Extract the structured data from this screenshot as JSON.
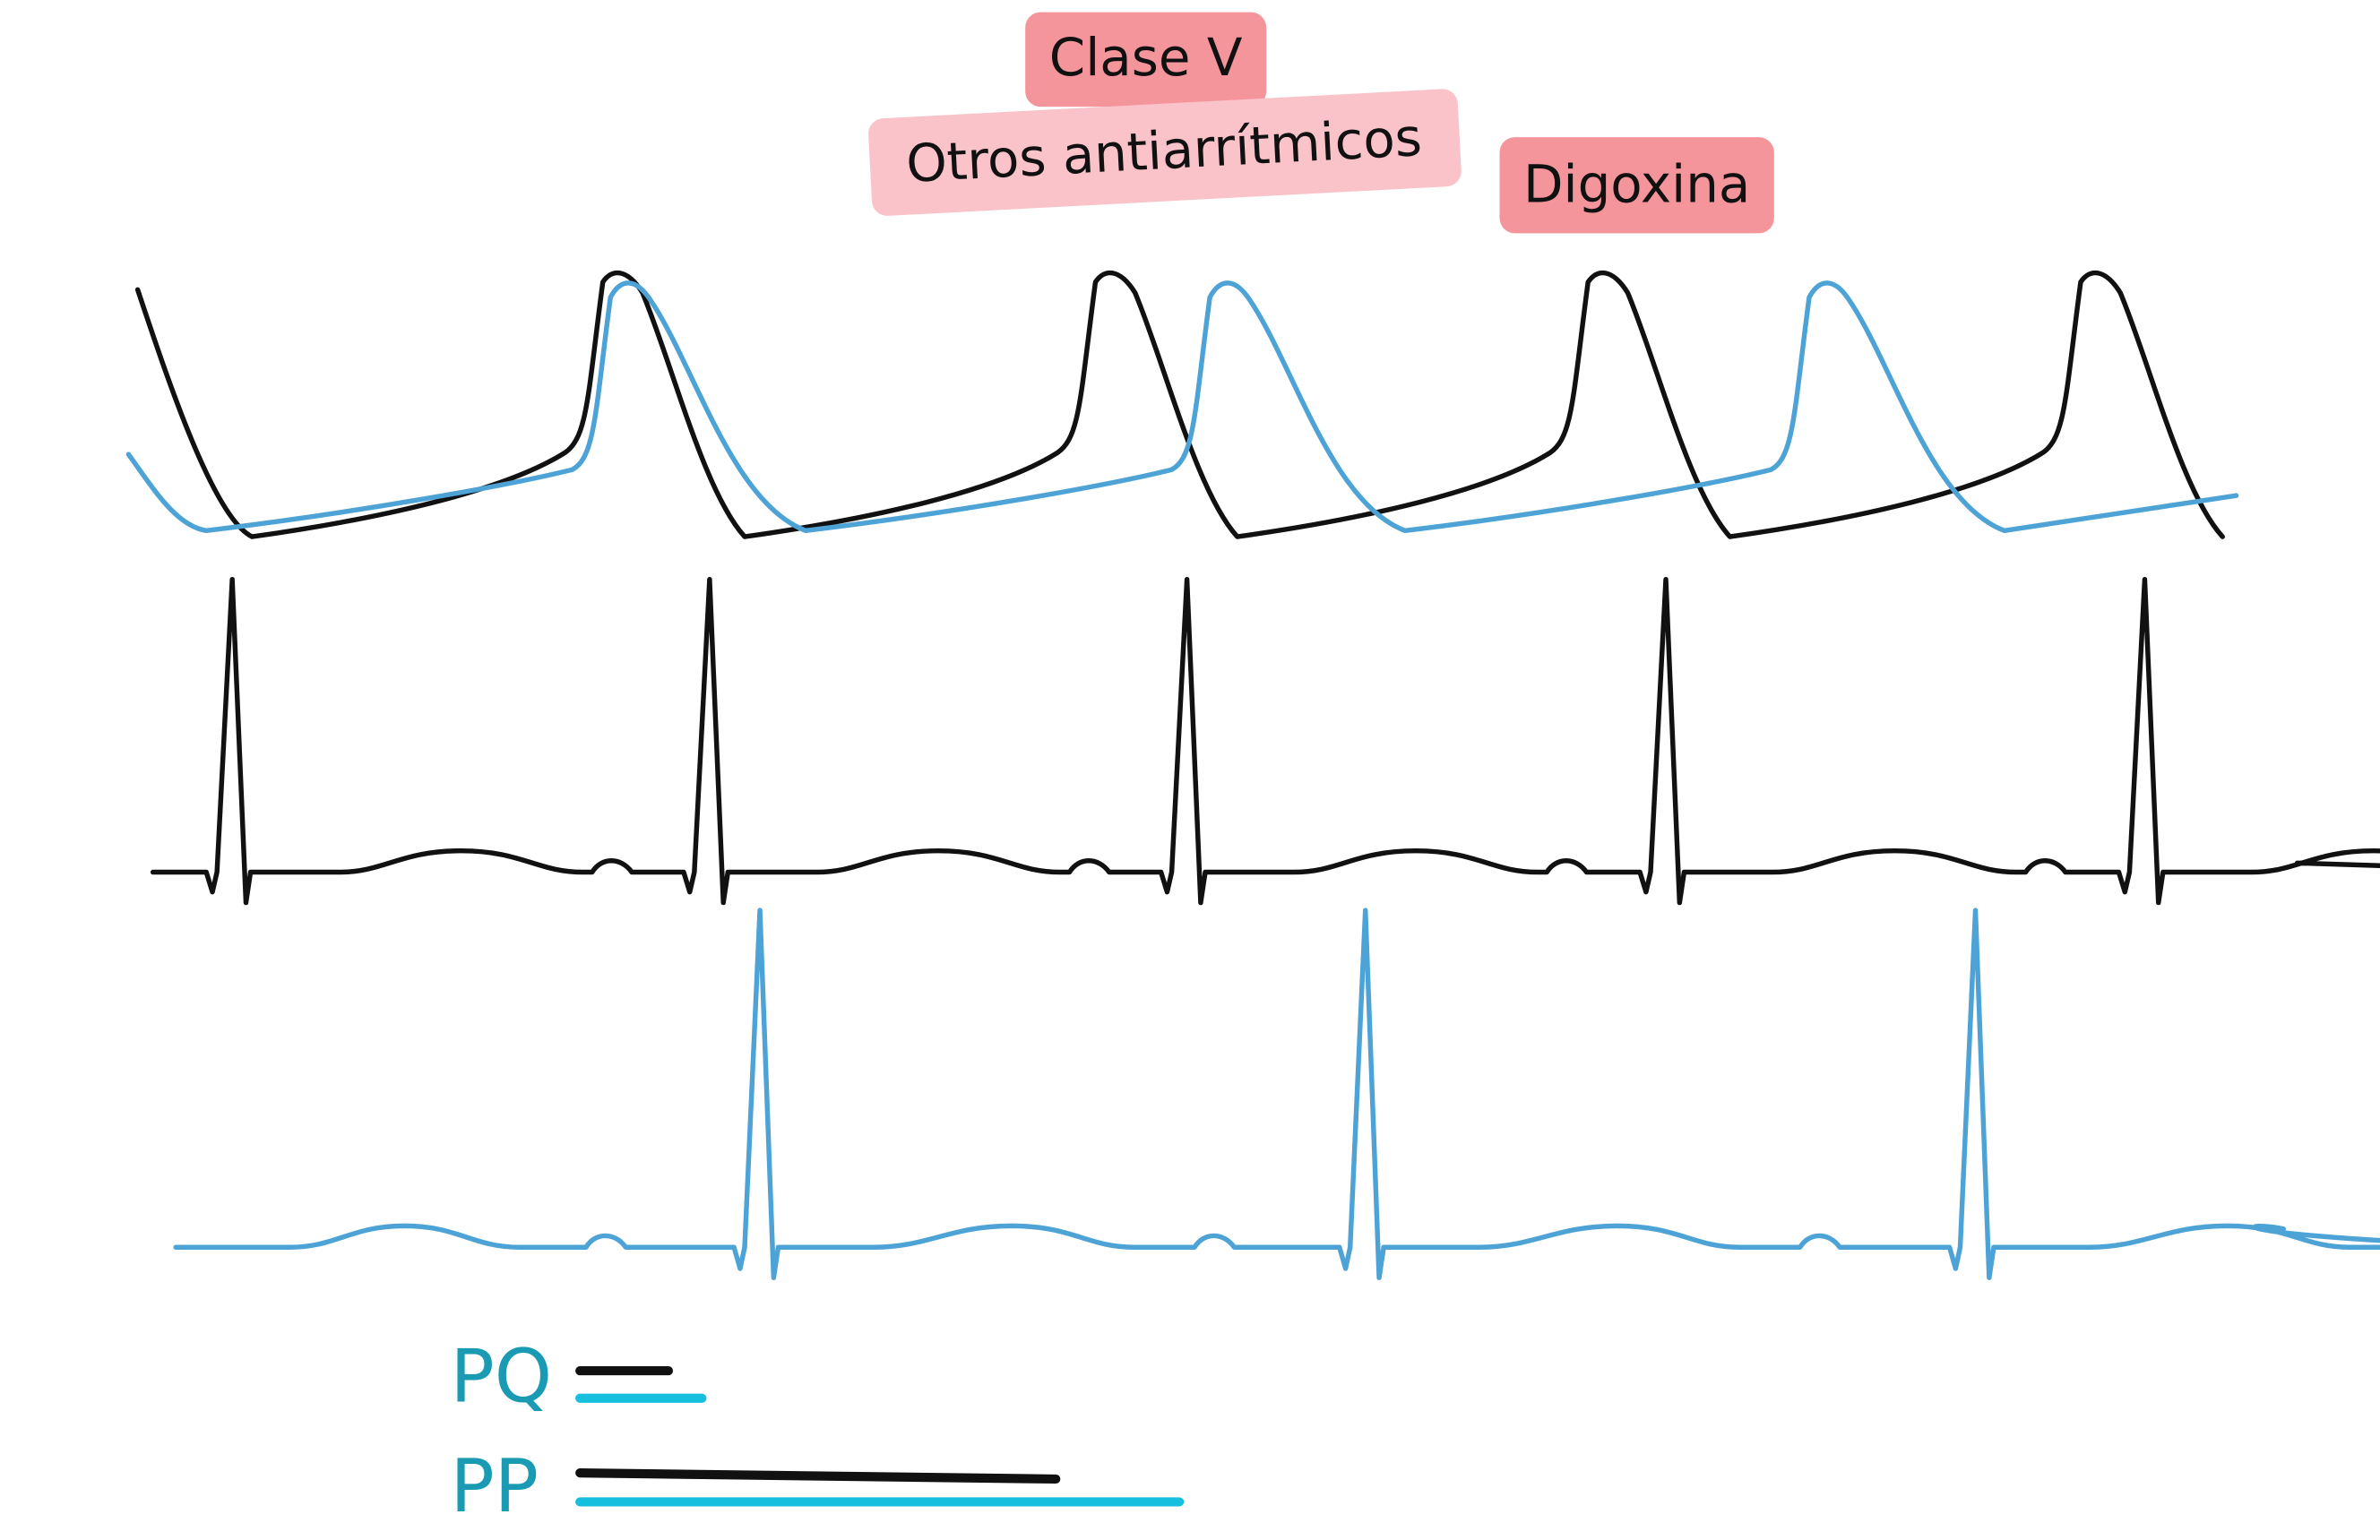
{
  "labels": {
    "clase_v": "Clase V",
    "otros": "Otros antiarrítmicos",
    "digoxina": "Digoxina"
  },
  "legend": {
    "pq": "PQ",
    "pp": "PP"
  }
}
